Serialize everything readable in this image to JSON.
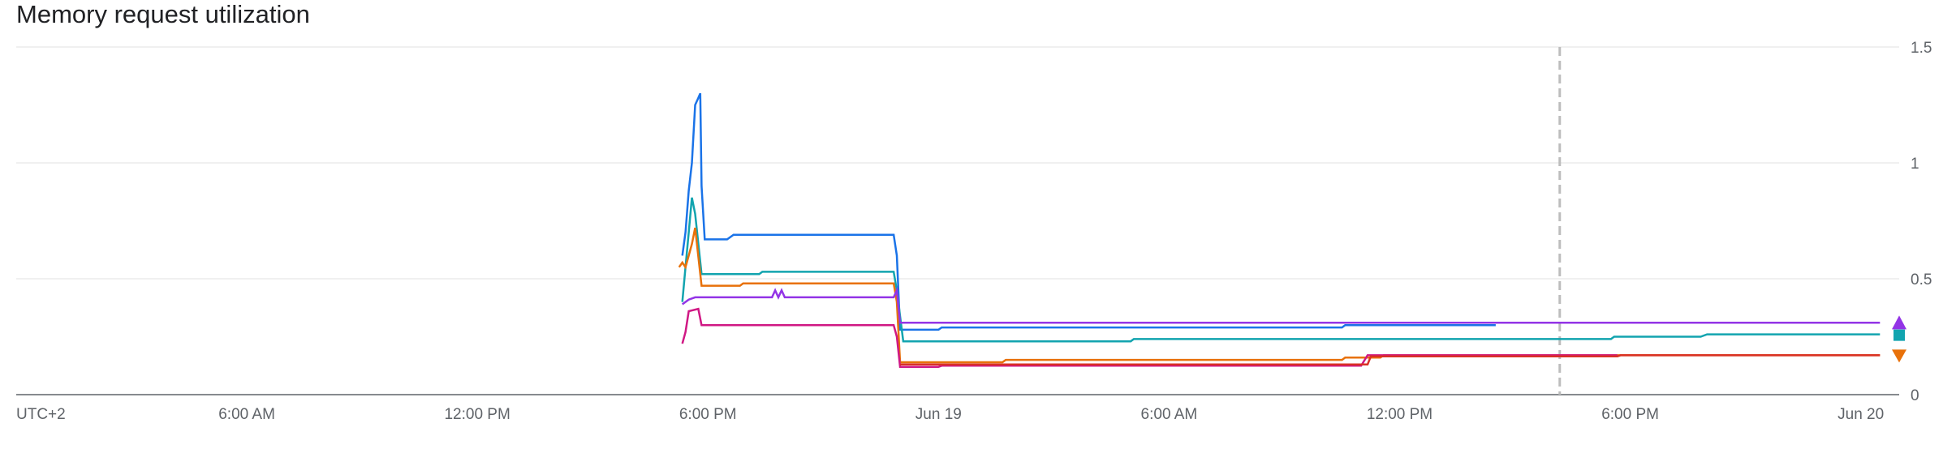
{
  "chart_data": {
    "type": "line",
    "title": "Memory request utilization",
    "xlabel": "",
    "ylabel": "",
    "ylim": [
      0,
      1.5
    ],
    "y_ticks": [
      "0",
      "0.5",
      "1",
      "1.5"
    ],
    "y_tick_values": [
      0,
      0.5,
      1,
      1.5
    ],
    "x_range": [
      "2024-06-18T00:00",
      "2024-06-20T01:00"
    ],
    "x_ticks": [
      {
        "label": "UTC+2",
        "at": "2024-06-18T00:00"
      },
      {
        "label": "6:00 AM",
        "at": "2024-06-18T06:00"
      },
      {
        "label": "12:00 PM",
        "at": "2024-06-18T12:00"
      },
      {
        "label": "6:00 PM",
        "at": "2024-06-18T18:00"
      },
      {
        "label": "Jun 19",
        "at": "2024-06-19T00:00"
      },
      {
        "label": "6:00 AM",
        "at": "2024-06-19T06:00"
      },
      {
        "label": "12:00 PM",
        "at": "2024-06-19T12:00"
      },
      {
        "label": "6:00 PM",
        "at": "2024-06-19T18:00"
      },
      {
        "label": "Jun 20",
        "at": "2024-06-20T00:00"
      }
    ],
    "marker_line": "2024-06-19T16:10",
    "grid": true,
    "legend": "none",
    "series": [
      {
        "color": "#1a73e8",
        "points": [
          [
            "2024-06-18T17:20",
            0.6
          ],
          [
            "2024-06-18T17:25",
            0.7
          ],
          [
            "2024-06-18T17:30",
            0.88
          ],
          [
            "2024-06-18T17:35",
            1.0
          ],
          [
            "2024-06-18T17:40",
            1.25
          ],
          [
            "2024-06-18T17:45",
            1.28
          ],
          [
            "2024-06-18T17:48",
            1.3
          ],
          [
            "2024-06-18T17:50",
            0.9
          ],
          [
            "2024-06-18T17:55",
            0.67
          ],
          [
            "2024-06-18T18:30",
            0.67
          ],
          [
            "2024-06-18T18:40",
            0.69
          ],
          [
            "2024-06-18T22:50",
            0.69
          ],
          [
            "2024-06-18T22:55",
            0.6
          ],
          [
            "2024-06-18T23:00",
            0.28
          ],
          [
            "2024-06-19T00:00",
            0.28
          ],
          [
            "2024-06-19T00:05",
            0.29
          ],
          [
            "2024-06-19T10:30",
            0.29
          ],
          [
            "2024-06-19T10:35",
            0.3
          ],
          [
            "2024-06-19T14:30",
            0.3
          ]
        ]
      },
      {
        "color": "#12a4af",
        "points": [
          [
            "2024-06-18T17:20",
            0.4
          ],
          [
            "2024-06-18T17:25",
            0.55
          ],
          [
            "2024-06-18T17:30",
            0.7
          ],
          [
            "2024-06-18T17:35",
            0.85
          ],
          [
            "2024-06-18T17:40",
            0.78
          ],
          [
            "2024-06-18T17:50",
            0.52
          ],
          [
            "2024-06-18T19:20",
            0.52
          ],
          [
            "2024-06-18T19:25",
            0.53
          ],
          [
            "2024-06-18T22:50",
            0.53
          ],
          [
            "2024-06-18T22:55",
            0.45
          ],
          [
            "2024-06-18T23:05",
            0.23
          ],
          [
            "2024-06-19T05:00",
            0.23
          ],
          [
            "2024-06-19T05:05",
            0.24
          ],
          [
            "2024-06-19T17:30",
            0.24
          ],
          [
            "2024-06-19T17:35",
            0.25
          ],
          [
            "2024-06-19T19:50",
            0.25
          ],
          [
            "2024-06-19T20:00",
            0.26
          ],
          [
            "2024-06-20T00:30",
            0.26
          ]
        ]
      },
      {
        "color": "#e8710a",
        "points": [
          [
            "2024-06-18T17:15",
            0.55
          ],
          [
            "2024-06-18T17:20",
            0.57
          ],
          [
            "2024-06-18T17:25",
            0.55
          ],
          [
            "2024-06-18T17:30",
            0.6
          ],
          [
            "2024-06-18T17:35",
            0.65
          ],
          [
            "2024-06-18T17:40",
            0.72
          ],
          [
            "2024-06-18T17:50",
            0.47
          ],
          [
            "2024-06-18T18:50",
            0.47
          ],
          [
            "2024-06-18T18:55",
            0.48
          ],
          [
            "2024-06-18T22:50",
            0.48
          ],
          [
            "2024-06-18T22:55",
            0.4
          ],
          [
            "2024-06-18T23:00",
            0.14
          ],
          [
            "2024-06-19T01:40",
            0.14
          ],
          [
            "2024-06-19T01:45",
            0.15
          ],
          [
            "2024-06-19T10:30",
            0.15
          ],
          [
            "2024-06-19T10:35",
            0.16
          ],
          [
            "2024-06-19T11:30",
            0.16
          ],
          [
            "2024-06-19T11:35",
            0.17
          ],
          [
            "2024-06-20T00:30",
            0.17
          ]
        ]
      },
      {
        "color": "#9334e6",
        "points": [
          [
            "2024-06-18T17:20",
            0.39
          ],
          [
            "2024-06-18T17:30",
            0.41
          ],
          [
            "2024-06-18T17:40",
            0.42
          ],
          [
            "2024-06-18T19:40",
            0.42
          ],
          [
            "2024-06-18T19:45",
            0.45
          ],
          [
            "2024-06-18T19:50",
            0.42
          ],
          [
            "2024-06-18T19:55",
            0.45
          ],
          [
            "2024-06-18T20:00",
            0.42
          ],
          [
            "2024-06-18T22:50",
            0.42
          ],
          [
            "2024-06-18T22:55",
            0.45
          ],
          [
            "2024-06-18T23:00",
            0.31
          ],
          [
            "2024-06-20T00:30",
            0.31
          ]
        ]
      },
      {
        "color": "#d01884",
        "points": [
          [
            "2024-06-18T17:20",
            0.22
          ],
          [
            "2024-06-18T17:25",
            0.27
          ],
          [
            "2024-06-18T17:30",
            0.36
          ],
          [
            "2024-06-18T17:45",
            0.37
          ],
          [
            "2024-06-18T17:50",
            0.3
          ],
          [
            "2024-06-18T22:50",
            0.3
          ],
          [
            "2024-06-18T22:55",
            0.25
          ],
          [
            "2024-06-18T23:00",
            0.12
          ],
          [
            "2024-06-19T00:00",
            0.12
          ],
          [
            "2024-06-19T00:05",
            0.125
          ],
          [
            "2024-06-19T11:00",
            0.125
          ],
          [
            "2024-06-19T11:10",
            0.17
          ],
          [
            "2024-06-19T17:40",
            0.17
          ]
        ]
      },
      {
        "color": "#d93025",
        "points": [
          [
            "2024-06-18T23:00",
            0.13
          ],
          [
            "2024-06-19T11:10",
            0.13
          ],
          [
            "2024-06-19T11:15",
            0.165
          ],
          [
            "2024-06-19T17:40",
            0.165
          ],
          [
            "2024-06-19T17:45",
            0.17
          ],
          [
            "2024-06-20T00:30",
            0.17
          ]
        ]
      }
    ],
    "end_markers": [
      {
        "shape": "triangle-up",
        "color": "#9334e6",
        "y": 0.31
      },
      {
        "shape": "square",
        "color": "#12a4af",
        "y": 0.26
      },
      {
        "shape": "triangle-down",
        "color": "#e8710a",
        "y": 0.17
      }
    ]
  }
}
